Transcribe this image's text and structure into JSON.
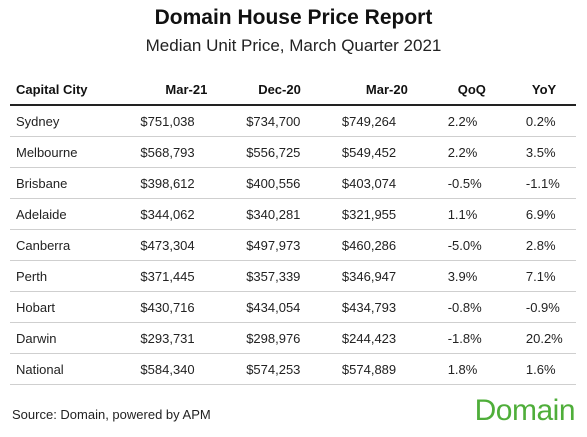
{
  "title": "Domain House Price Report",
  "subtitle": "Median Unit Price, March Quarter 2021",
  "table": {
    "headers": [
      "Capital City",
      "Mar-21",
      "Dec-20",
      "Mar-20",
      "QoQ",
      "YoY"
    ],
    "rows": [
      [
        "Sydney",
        "$751,038",
        "$734,700",
        "$749,264",
        "2.2%",
        "0.2%"
      ],
      [
        "Melbourne",
        "$568,793",
        "$556,725",
        "$549,452",
        "2.2%",
        "3.5%"
      ],
      [
        "Brisbane",
        "$398,612",
        "$400,556",
        "$403,074",
        "-0.5%",
        "-1.1%"
      ],
      [
        "Adelaide",
        "$344,062",
        "$340,281",
        "$321,955",
        "1.1%",
        "6.9%"
      ],
      [
        "Canberra",
        "$473,304",
        "$497,973",
        "$460,286",
        "-5.0%",
        "2.8%"
      ],
      [
        "Perth",
        "$371,445",
        "$357,339",
        "$346,947",
        "3.9%",
        "7.1%"
      ],
      [
        "Hobart",
        "$430,716",
        "$434,054",
        "$434,793",
        "-0.8%",
        "-0.9%"
      ],
      [
        "Darwin",
        "$293,731",
        "$298,976",
        "$244,423",
        "-1.8%",
        "20.2%"
      ],
      [
        "National",
        "$584,340",
        "$574,253",
        "$574,889",
        "1.8%",
        "1.6%"
      ]
    ]
  },
  "source": "Source: Domain, powered by APM",
  "logo": "Domain",
  "colors": {
    "brand": "#4fae3a"
  }
}
